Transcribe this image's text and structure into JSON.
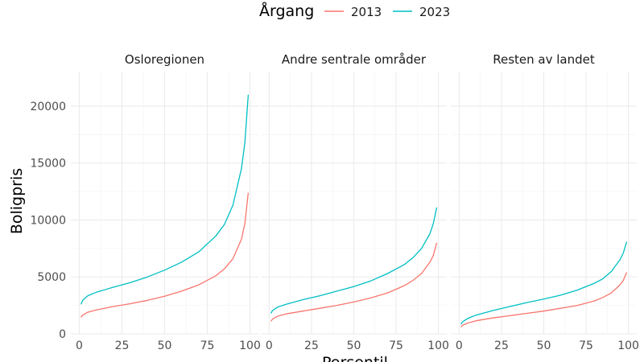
{
  "chart_data": {
    "type": "line",
    "ylabel": "Boligpris",
    "xlabel": "Persentil",
    "xlim": [
      0,
      100
    ],
    "ylim": [
      0,
      22000
    ],
    "x_ticks": [
      0,
      25,
      50,
      75,
      100
    ],
    "y_ticks": [
      0,
      5000,
      10000,
      15000,
      20000
    ],
    "x_tick_labels": [
      "0",
      "25",
      "50",
      "75",
      "100"
    ],
    "y_tick_labels": [
      "0",
      "5000",
      "10000",
      "15000",
      "20000"
    ],
    "grid": true,
    "legend": {
      "title": "Årgang",
      "position": "top",
      "entries": [
        {
          "label": "2013",
          "color": "#F8766D"
        },
        {
          "label": "2023",
          "color": "#00BFC4"
        }
      ]
    },
    "x": [
      1,
      2,
      5,
      10,
      20,
      30,
      40,
      50,
      60,
      70,
      80,
      85,
      90,
      95,
      97,
      99
    ],
    "panels": [
      {
        "title": "Osloregionen",
        "series": [
          {
            "name": "2013",
            "values": [
              1450,
              1650,
              1900,
              2100,
              2400,
              2650,
              2950,
              3300,
              3750,
              4300,
              5100,
              5700,
              6600,
              8300,
              9700,
              12400
            ]
          },
          {
            "name": "2023",
            "values": [
              2600,
              2950,
              3350,
              3650,
              4100,
              4500,
              5000,
              5600,
              6300,
              7200,
              8600,
              9600,
              11300,
              14500,
              16800,
              21000
            ]
          }
        ]
      },
      {
        "title": "Andre sentrale områder",
        "series": [
          {
            "name": "2013",
            "values": [
              1100,
              1300,
              1550,
              1750,
              2000,
              2250,
              2500,
              2800,
              3150,
              3600,
              4250,
              4700,
              5300,
              6300,
              6900,
              8000
            ]
          },
          {
            "name": "2023",
            "values": [
              1800,
              2050,
              2350,
              2600,
              3000,
              3350,
              3750,
              4150,
              4650,
              5300,
              6100,
              6700,
              7500,
              8800,
              9700,
              11100
            ]
          }
        ]
      },
      {
        "title": "Resten av landet",
        "series": [
          {
            "name": "2013",
            "values": [
              600,
              750,
              950,
              1150,
              1400,
              1600,
              1800,
              2000,
              2250,
              2500,
              2900,
              3200,
              3600,
              4300,
              4700,
              5400
            ]
          },
          {
            "name": "2023",
            "values": [
              850,
              1050,
              1350,
              1650,
              2050,
              2400,
              2750,
              3050,
              3400,
              3850,
              4450,
              4850,
              5500,
              6500,
              7100,
              8100
            ]
          }
        ]
      }
    ]
  }
}
